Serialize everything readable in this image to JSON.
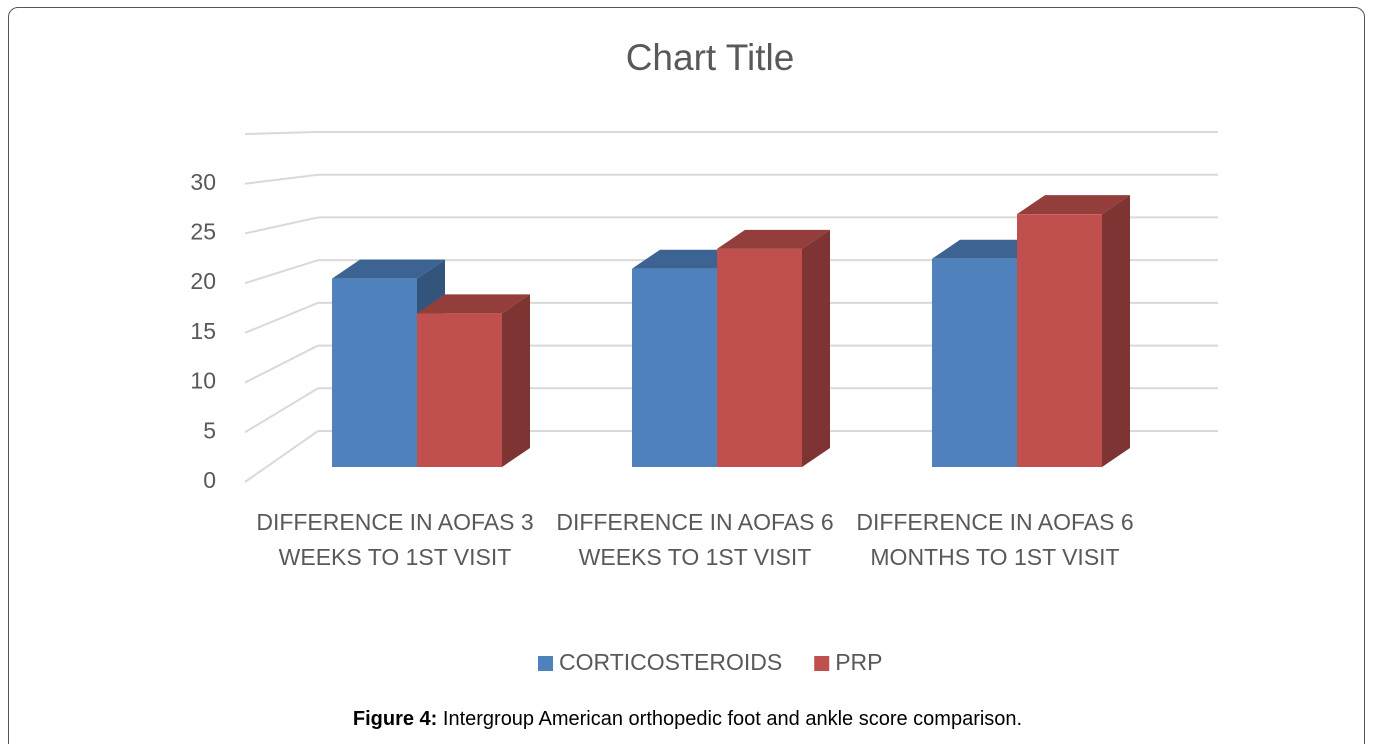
{
  "chart_data": {
    "type": "bar3d",
    "title": "Chart Title",
    "categories": [
      "DIFFERENCE IN AOFAS 3 WEEKS TO 1ST VISIT",
      "DIFFERENCE IN AOFAS 6 WEEKS TO 1ST VISIT",
      "DIFFERENCE IN AOFAS 6 MONTHS TO 1ST VISIT"
    ],
    "series": [
      {
        "name": "CORTICOSTEROIDS",
        "color": "#4f81bd",
        "values": [
          19,
          20,
          21
        ]
      },
      {
        "name": "PRP",
        "color": "#c0504d",
        "values": [
          15.5,
          22,
          25.5
        ]
      }
    ],
    "ylim": [
      0,
      35
    ],
    "yticks": [
      0,
      5,
      10,
      15,
      20,
      25,
      30
    ],
    "grid": true,
    "legend": "bottom"
  },
  "caption": {
    "label": "Figure 4:",
    "text": " Intergroup American orthopedic foot and ankle score comparison."
  }
}
